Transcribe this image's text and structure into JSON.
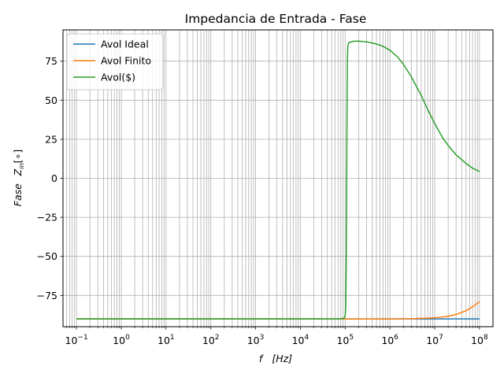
{
  "chart_data": {
    "type": "line",
    "title": "Impedancia de Entrada - Fase",
    "xlabel": "f   [Hz]",
    "ylabel": "Fase   Z_in [°]",
    "xscale": "log",
    "xlim": [
      0.05,
      200000000
    ],
    "ylim": [
      -95,
      95
    ],
    "x_ticks": [
      {
        "value": 0.1,
        "base": "10",
        "exp": "−1"
      },
      {
        "value": 1,
        "base": "10",
        "exp": "0"
      },
      {
        "value": 10,
        "base": "10",
        "exp": "1"
      },
      {
        "value": 100,
        "base": "10",
        "exp": "2"
      },
      {
        "value": 1000,
        "base": "10",
        "exp": "3"
      },
      {
        "value": 10000,
        "base": "10",
        "exp": "4"
      },
      {
        "value": 100000,
        "base": "10",
        "exp": "5"
      },
      {
        "value": 1000000,
        "base": "10",
        "exp": "6"
      },
      {
        "value": 10000000,
        "base": "10",
        "exp": "7"
      },
      {
        "value": 100000000,
        "base": "10",
        "exp": "8"
      }
    ],
    "y_ticks": [
      {
        "value": 75,
        "label": "75"
      },
      {
        "value": 50,
        "label": "50"
      },
      {
        "value": 25,
        "label": "25"
      },
      {
        "value": 0,
        "label": "0"
      },
      {
        "value": -25,
        "label": "−25"
      },
      {
        "value": -50,
        "label": "−50"
      },
      {
        "value": -75,
        "label": "−75"
      }
    ],
    "grid": true,
    "grid_minor": true,
    "legend_position": "top-left",
    "series": [
      {
        "name": "Avol Ideal",
        "color": "#1f77b4",
        "points": [
          [
            0.1,
            -90
          ],
          [
            100000000,
            -90
          ]
        ]
      },
      {
        "name": "Avol Finito",
        "color": "#ff7f0e",
        "points": [
          [
            0.1,
            -90
          ],
          [
            1000000,
            -90
          ],
          [
            3000000,
            -89.9
          ],
          [
            10000000,
            -89.3
          ],
          [
            20000000,
            -88.3
          ],
          [
            30000000,
            -87.2
          ],
          [
            50000000,
            -84.8
          ],
          [
            70000000,
            -82.3
          ],
          [
            100000000,
            -79
          ]
        ]
      },
      {
        "name": "Avol($)",
        "color": "#2ca02c",
        "points": [
          [
            0.1,
            -90
          ],
          [
            80000,
            -90
          ],
          [
            95000,
            -89.5
          ],
          [
            100000,
            -88
          ],
          [
            103000,
            -83
          ],
          [
            106000,
            -50
          ],
          [
            108000,
            -10
          ],
          [
            110000,
            40
          ],
          [
            112000,
            75
          ],
          [
            115000,
            85
          ],
          [
            120000,
            86.8
          ],
          [
            150000,
            87.7
          ],
          [
            200000,
            87.8
          ],
          [
            300000,
            87.4
          ],
          [
            500000,
            86
          ],
          [
            700000,
            84.5
          ],
          [
            1000000,
            82
          ],
          [
            1500000,
            77.5
          ],
          [
            2000000,
            73
          ],
          [
            3000000,
            65
          ],
          [
            5000000,
            53
          ],
          [
            7000000,
            44
          ],
          [
            10000000,
            35
          ],
          [
            15000000,
            26
          ],
          [
            20000000,
            21
          ],
          [
            30000000,
            15
          ],
          [
            50000000,
            9.5
          ],
          [
            70000000,
            6.5
          ],
          [
            100000000,
            4.3
          ]
        ]
      }
    ]
  }
}
